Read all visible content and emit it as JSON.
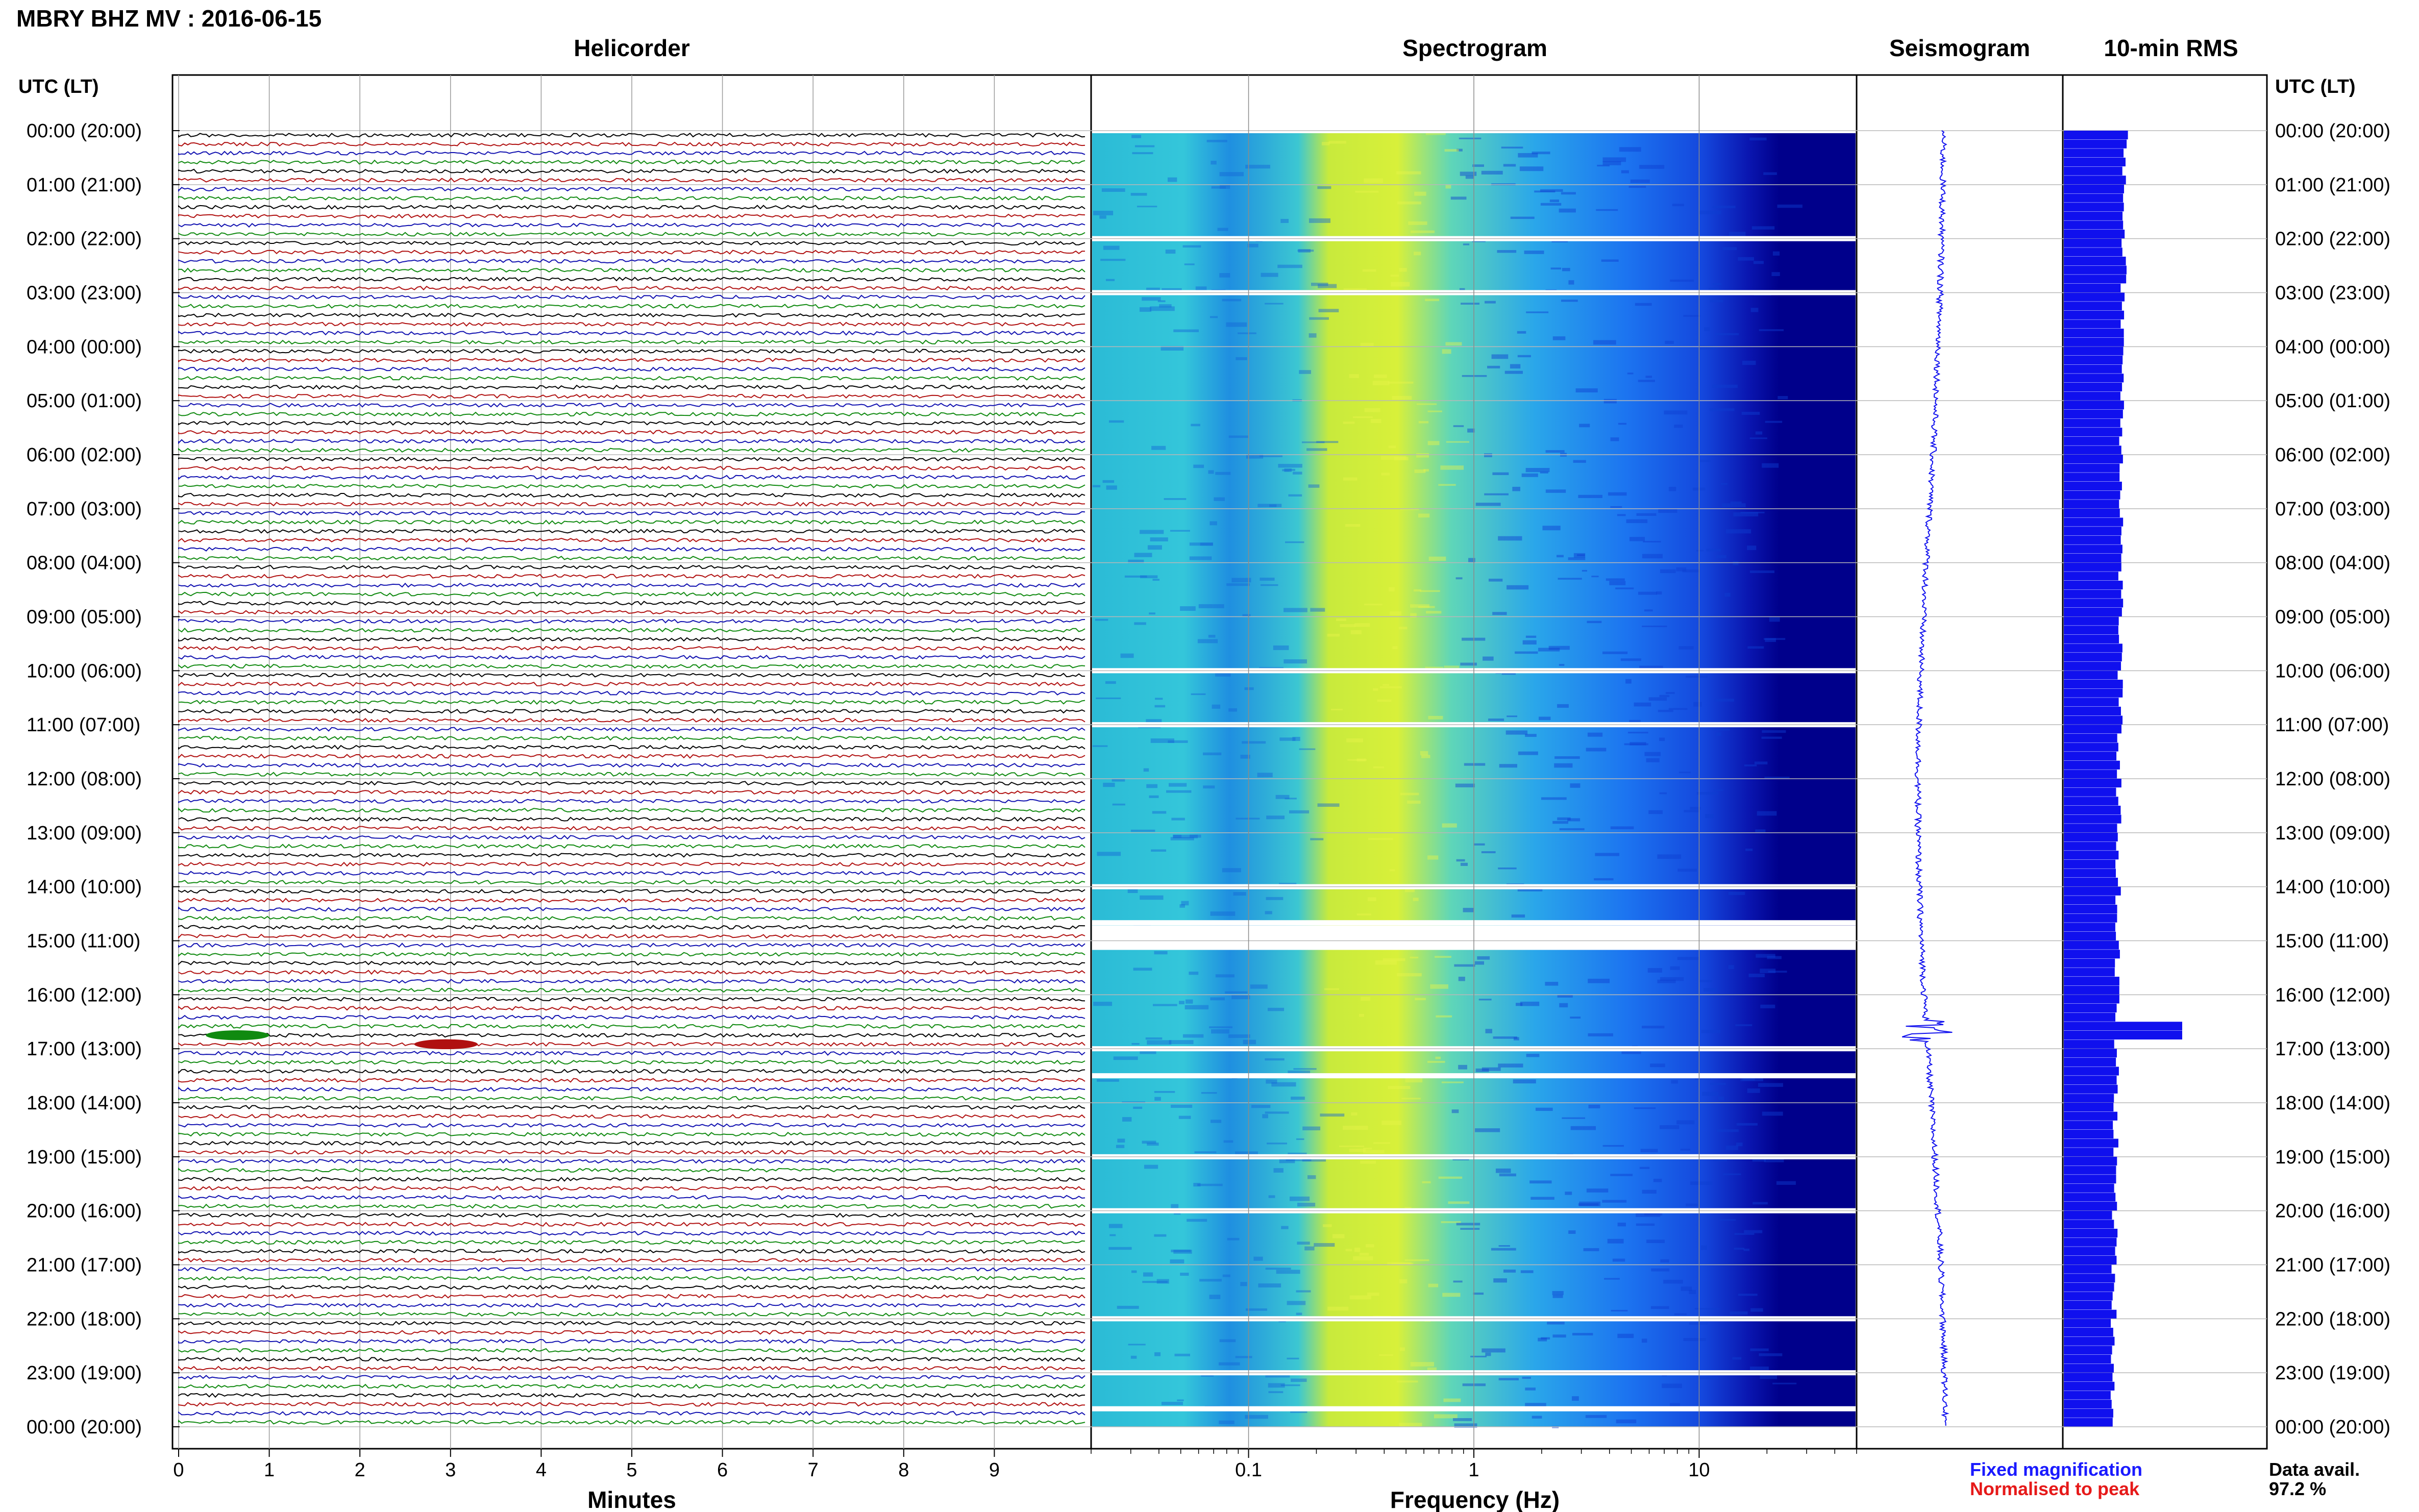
{
  "header": {
    "title": "MBRY BHZ MV : 2016-06-15"
  },
  "axes_labels": {
    "left_time": "UTC (LT)",
    "right_time": "UTC (LT)"
  },
  "panels": {
    "helicorder": {
      "title": "Helicorder",
      "xlabel": "Minutes"
    },
    "spectrogram": {
      "title": "Spectrogram",
      "xlabel": "Frequency (Hz)"
    },
    "seismogram": {
      "title": "Seismogram"
    },
    "rms": {
      "title": "10-min RMS"
    }
  },
  "legend": {
    "fixed": "Fixed magnification",
    "normalised": "Normalised to peak",
    "avail_label": "Data avail.",
    "avail_value": "97.2 %"
  },
  "colors": {
    "fixed": "#1a1aff",
    "normalised": "#e61919",
    "trace_cycle": [
      "#000000",
      "#b01010",
      "#1010b0",
      "#108a10"
    ],
    "rms_bar": "#1010ee",
    "spectro_dark": "#00008b",
    "spectro_mid": "#1e90ff",
    "spectro_high": "#d4ee3a"
  },
  "chart_data": [
    {
      "type": "line",
      "title": "Helicorder",
      "xlabel": "Minutes",
      "xlim": [
        0,
        10
      ],
      "xticks": [
        0,
        1,
        2,
        3,
        4,
        5,
        6,
        7,
        8,
        9
      ],
      "rows_per_hour": 6,
      "ytick_labels": [
        "00:00 (20:00)",
        "01:00 (21:00)",
        "02:00 (22:00)",
        "03:00 (23:00)",
        "04:00 (00:00)",
        "05:00 (01:00)",
        "06:00 (02:00)",
        "07:00 (03:00)",
        "08:00 (04:00)",
        "09:00 (05:00)",
        "10:00 (06:00)",
        "11:00 (07:00)",
        "12:00 (08:00)",
        "13:00 (09:00)",
        "14:00 (10:00)",
        "15:00 (11:00)",
        "16:00 (12:00)",
        "17:00 (13:00)",
        "18:00 (14:00)",
        "19:00 (15:00)",
        "20:00 (16:00)",
        "21:00 (17:00)",
        "22:00 (18:00)",
        "23:00 (19:00)",
        "00:00 (20:00)"
      ],
      "events": [
        {
          "time_utc": "16:40",
          "minutes": [
            0.3,
            1.0
          ],
          "color": "green"
        },
        {
          "time_utc": "16:50",
          "minutes": [
            2.6,
            3.3
          ],
          "color": "red"
        }
      ]
    },
    {
      "type": "heatmap",
      "title": "Spectrogram",
      "xlabel": "Frequency (Hz)",
      "xscale": "log",
      "xlim": [
        0.02,
        50
      ],
      "xticks": [
        0.1,
        1,
        10
      ],
      "xtick_labels": [
        "0.1",
        "1",
        "10"
      ],
      "energy_peak_hz": [
        0.25,
        0.6
      ],
      "gaps_utc": [
        "00:00",
        "02:00",
        "03:00",
        "10:00",
        "11:00",
        "14:00",
        "14:40",
        "15:00",
        "17:00",
        "17:30",
        "19:00",
        "20:00",
        "22:00",
        "23:00",
        "23:40"
      ]
    },
    {
      "type": "line",
      "title": "Seismogram",
      "spike_utc": "16:40"
    },
    {
      "type": "bar",
      "title": "10-min RMS",
      "orientation": "horizontal",
      "peaks_utc": [
        "16:30",
        "16:40"
      ],
      "relative_level_typical": 0.3,
      "relative_level_peak": 0.58
    }
  ]
}
